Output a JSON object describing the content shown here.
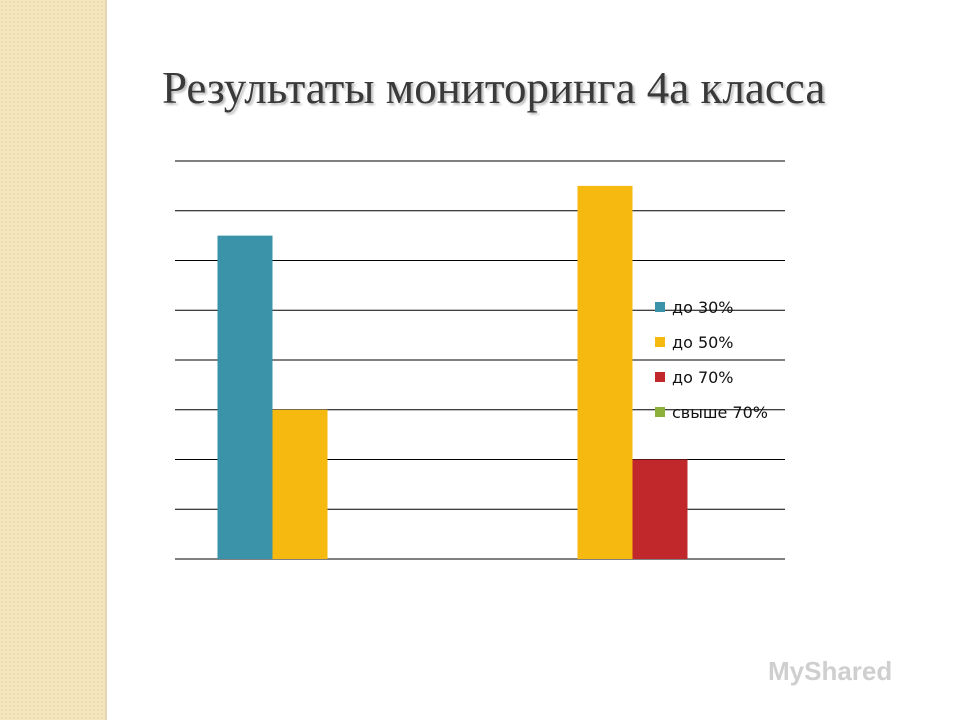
{
  "title": "Результаты мониторинга 4а класса",
  "watermark": "MyShared",
  "chart_data": {
    "type": "bar",
    "categories": [
      "",
      ""
    ],
    "series": [
      {
        "name": "до 30%",
        "color": "#3a93a8",
        "values": [
          6.5,
          0
        ]
      },
      {
        "name": "до 50%",
        "color": "#f6b90f",
        "values": [
          3,
          7.5
        ]
      },
      {
        "name": "до 70%",
        "color": "#c1282b",
        "values": [
          0,
          2
        ]
      },
      {
        "name": "свыше 70%",
        "color": "#8cb03a",
        "values": [
          0,
          0
        ]
      }
    ],
    "ylim": [
      0,
      8
    ],
    "y_ticks_shown": false,
    "grid": true,
    "legend": "right"
  }
}
